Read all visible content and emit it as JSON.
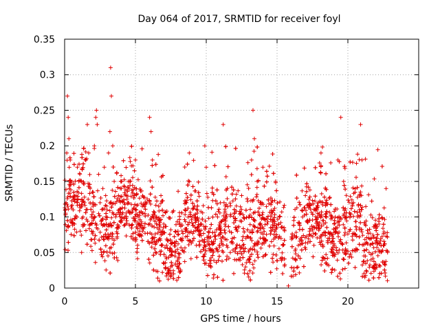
{
  "chart_data": {
    "type": "scatter",
    "title": "Day 064 of 2017, SRMTID for receiver foyl",
    "xlabel": "GPS time / hours",
    "ylabel": "SRMTID / TECUs",
    "xlim": [
      0,
      25
    ],
    "ylim": [
      0,
      0.35
    ],
    "xticks": [
      0,
      5,
      10,
      15,
      20
    ],
    "xtick_labels": [
      "0",
      "5",
      "10",
      "15",
      "20"
    ],
    "yticks": [
      0,
      0.05,
      0.1,
      0.15,
      0.2,
      0.25,
      0.3,
      0.35
    ],
    "ytick_labels": [
      "0",
      "0.05",
      "0.1",
      "0.15",
      "0.2",
      "0.25",
      "0.3",
      "0.35"
    ],
    "grid": true,
    "marker": "+",
    "color": "#e00000",
    "data_extent_hours": [
      0,
      22.8
    ],
    "series": [
      {
        "name": "SRMTID",
        "points": [
          [
            0.1,
            0.12
          ],
          [
            0.15,
            0.19
          ],
          [
            0.2,
            0.27
          ],
          [
            0.25,
            0.24
          ],
          [
            0.3,
            0.21
          ],
          [
            0.4,
            0.18
          ],
          [
            0.5,
            0.15
          ],
          [
            0.6,
            0.11
          ],
          [
            0.7,
            0.09
          ],
          [
            0.8,
            0.13
          ],
          [
            0.9,
            0.17
          ],
          [
            1.0,
            0.15
          ],
          [
            1.1,
            0.08
          ],
          [
            1.2,
            0.05
          ],
          [
            1.3,
            0.1
          ],
          [
            1.4,
            0.12
          ],
          [
            1.5,
            0.18
          ],
          [
            1.6,
            0.23
          ],
          [
            1.7,
            0.19
          ],
          [
            1.8,
            0.14
          ],
          [
            1.9,
            0.1
          ],
          [
            2.0,
            0.12
          ],
          [
            2.1,
            0.2
          ],
          [
            2.2,
            0.24
          ],
          [
            2.25,
            0.25
          ],
          [
            2.3,
            0.23
          ],
          [
            2.4,
            0.16
          ],
          [
            2.5,
            0.12
          ],
          [
            2.6,
            0.09
          ],
          [
            2.7,
            0.14
          ],
          [
            2.8,
            0.17
          ],
          [
            2.9,
            0.13
          ],
          [
            3.0,
            0.11
          ],
          [
            3.1,
            0.19
          ],
          [
            3.2,
            0.22
          ],
          [
            3.25,
            0.31
          ],
          [
            3.3,
            0.27
          ],
          [
            3.4,
            0.2
          ],
          [
            3.5,
            0.15
          ],
          [
            3.6,
            0.1
          ],
          [
            3.8,
            0.13
          ],
          [
            4.0,
            0.14
          ],
          [
            4.2,
            0.12
          ],
          [
            4.5,
            0.15
          ],
          [
            4.8,
            0.11
          ],
          [
            5.0,
            0.18
          ],
          [
            5.2,
            0.1
          ],
          [
            5.5,
            0.08
          ],
          [
            5.8,
            0.12
          ],
          [
            6.0,
            0.24
          ],
          [
            6.1,
            0.22
          ],
          [
            6.2,
            0.18
          ],
          [
            6.5,
            0.1
          ],
          [
            6.8,
            0.13
          ],
          [
            7.0,
            0.09
          ],
          [
            7.2,
            0.06
          ],
          [
            7.5,
            0.03
          ],
          [
            7.7,
            0.02
          ],
          [
            7.8,
            0.05
          ],
          [
            8.0,
            0.08
          ],
          [
            8.3,
            0.07
          ],
          [
            8.6,
            0.12
          ],
          [
            8.8,
            0.19
          ],
          [
            9.0,
            0.1
          ],
          [
            9.3,
            0.06
          ],
          [
            9.6,
            0.09
          ],
          [
            9.9,
            0.2
          ],
          [
            10.0,
            0.17
          ],
          [
            10.2,
            0.07
          ],
          [
            10.5,
            0.05
          ],
          [
            10.8,
            0.1
          ],
          [
            11.0,
            0.12
          ],
          [
            11.2,
            0.23
          ],
          [
            11.4,
            0.1
          ],
          [
            11.7,
            0.05
          ],
          [
            12.0,
            0.04
          ],
          [
            12.2,
            0.08
          ],
          [
            12.5,
            0.13
          ],
          [
            12.8,
            0.07
          ],
          [
            13.0,
            0.1
          ],
          [
            13.2,
            0.18
          ],
          [
            13.3,
            0.25
          ],
          [
            13.4,
            0.21
          ],
          [
            13.6,
            0.15
          ],
          [
            13.8,
            0.12
          ],
          [
            14.0,
            0.17
          ],
          [
            14.3,
            0.09
          ],
          [
            14.6,
            0.12
          ],
          [
            14.9,
            0.15
          ],
          [
            15.1,
            0.09
          ],
          [
            15.4,
            0.06
          ],
          [
            15.8,
            0.003
          ],
          [
            16.1,
            0.07
          ],
          [
            16.3,
            0.04
          ],
          [
            16.5,
            0.06
          ],
          [
            16.8,
            0.1
          ],
          [
            17.0,
            0.13
          ],
          [
            17.3,
            0.08
          ],
          [
            17.6,
            0.06
          ],
          [
            17.9,
            0.12
          ],
          [
            18.1,
            0.19
          ],
          [
            18.3,
            0.09
          ],
          [
            18.6,
            0.07
          ],
          [
            18.9,
            0.05
          ],
          [
            19.1,
            0.1
          ],
          [
            19.3,
            0.18
          ],
          [
            19.5,
            0.24
          ],
          [
            19.7,
            0.15
          ],
          [
            19.9,
            0.1
          ],
          [
            20.1,
            0.08
          ],
          [
            20.4,
            0.12
          ],
          [
            20.7,
            0.1
          ],
          [
            20.9,
            0.23
          ],
          [
            21.0,
            0.18
          ],
          [
            21.2,
            0.09
          ],
          [
            21.5,
            0.05
          ],
          [
            21.8,
            0.03
          ],
          [
            22.0,
            0.07
          ],
          [
            22.2,
            0.09
          ],
          [
            22.5,
            0.06
          ],
          [
            22.7,
            0.14
          ],
          [
            22.8,
            0.05
          ]
        ]
      }
    ]
  }
}
